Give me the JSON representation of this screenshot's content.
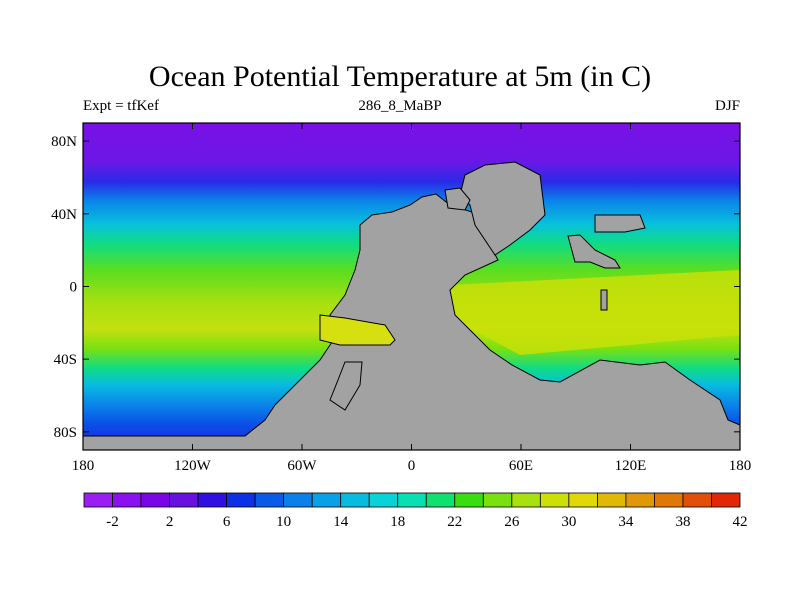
{
  "title": "Ocean Potential Temperature at 5m (in C)",
  "subtitle_left": "Expt = tfKef",
  "subtitle_center": "286_8_MaBP",
  "subtitle_right": "DJF",
  "axes": {
    "lat_labels": [
      {
        "value": 80,
        "label": "80N"
      },
      {
        "value": 40,
        "label": "40N"
      },
      {
        "value": 0,
        "label": "0"
      },
      {
        "value": -40,
        "label": "40S"
      },
      {
        "value": -80,
        "label": "80S"
      }
    ],
    "lon_labels": [
      {
        "value": -180,
        "label": "180"
      },
      {
        "value": -120,
        "label": "120W"
      },
      {
        "value": -60,
        "label": "60W"
      },
      {
        "value": 0,
        "label": "0"
      },
      {
        "value": 60,
        "label": "60E"
      },
      {
        "value": 120,
        "label": "120E"
      },
      {
        "value": 180,
        "label": "180"
      }
    ],
    "lon_range": [
      -180,
      180
    ],
    "lat_range": [
      -90,
      90
    ]
  },
  "colorbar": {
    "colors": [
      "#9a1df2",
      "#8a10ee",
      "#7a06e8",
      "#6810e0",
      "#3010e0",
      "#0c30e4",
      "#0a5ae8",
      "#0a80ea",
      "#08a0e6",
      "#08bce0",
      "#08d2da",
      "#08e0b4",
      "#10e070",
      "#3ade10",
      "#7ae010",
      "#a8e010",
      "#cce008",
      "#e0d808",
      "#e0b808",
      "#e09808",
      "#e07808",
      "#e05008",
      "#e02808"
    ],
    "tick_labels": [
      "-2",
      "2",
      "6",
      "10",
      "14",
      "18",
      "22",
      "26",
      "30",
      "34",
      "38",
      "42"
    ]
  },
  "colors": {
    "land": "#a2a2a2",
    "cold": "#7a06e8",
    "warm": "#c4e010"
  }
}
